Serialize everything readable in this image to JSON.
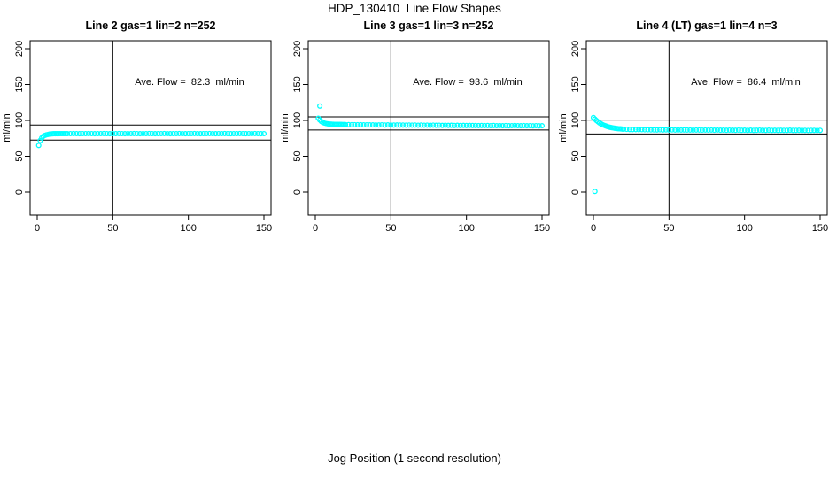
{
  "title": "HDP_130410  Line Flow Shapes",
  "xlabel": "Jog Position (1 second resolution)",
  "colors": {
    "marker": "#00ffff",
    "axis": "#000000",
    "background": "#ffffff"
  },
  "chart_data": [
    {
      "type": "scatter",
      "title": "Line 2 gas=1 lin=2 n=252",
      "annotation": "Ave. Flow =  82.3  ml/min",
      "ave_flow": 82.3,
      "ylabel": "ml/min",
      "xlim": [
        0,
        150
      ],
      "ylim": [
        0,
        200
      ],
      "xticks": [
        0,
        50,
        100,
        150
      ],
      "yticks": [
        0,
        50,
        100,
        150,
        200
      ],
      "vline": 50,
      "hlines": [
        93.5,
        72.5
      ],
      "points": [
        [
          1,
          65
        ],
        [
          2,
          72
        ],
        [
          3,
          75.5
        ],
        [
          4,
          77.8
        ],
        [
          5,
          79
        ],
        [
          6,
          79.8
        ],
        [
          7,
          80.3
        ],
        [
          8,
          80.7
        ],
        [
          9,
          81
        ],
        [
          10,
          81.2
        ],
        [
          11,
          81.3
        ],
        [
          12,
          81.3
        ],
        [
          13,
          81.4
        ],
        [
          14,
          81.4
        ],
        [
          15,
          81.5
        ],
        [
          16,
          81.5
        ],
        [
          17,
          81.5
        ],
        [
          18,
          81.5
        ],
        [
          19,
          81.5
        ],
        [
          20,
          81.5
        ],
        [
          22,
          81.5
        ],
        [
          24,
          81.6
        ],
        [
          26,
          81.5
        ],
        [
          28,
          81.4
        ],
        [
          30,
          81.5
        ],
        [
          32,
          81.5
        ],
        [
          34,
          81.6
        ],
        [
          36,
          81.5
        ],
        [
          38,
          81.4
        ],
        [
          40,
          81.5
        ],
        [
          42,
          81.5
        ],
        [
          44,
          81.6
        ],
        [
          46,
          81.5
        ],
        [
          48,
          81.4
        ],
        [
          50,
          81.5
        ],
        [
          52,
          81.5
        ],
        [
          54,
          81.6
        ],
        [
          56,
          81.5
        ],
        [
          58,
          81.4
        ],
        [
          60,
          81.5
        ],
        [
          62,
          81.5
        ],
        [
          64,
          81.6
        ],
        [
          66,
          81.5
        ],
        [
          68,
          81.4
        ],
        [
          70,
          81.5
        ],
        [
          72,
          81.5
        ],
        [
          74,
          81.6
        ],
        [
          76,
          81.5
        ],
        [
          78,
          81.4
        ],
        [
          80,
          81.5
        ],
        [
          82,
          81.5
        ],
        [
          84,
          81.6
        ],
        [
          86,
          81.5
        ],
        [
          88,
          81.4
        ],
        [
          90,
          81.5
        ],
        [
          92,
          81.5
        ],
        [
          94,
          81.6
        ],
        [
          96,
          81.5
        ],
        [
          98,
          81.4
        ],
        [
          100,
          81.5
        ],
        [
          102,
          81.5
        ],
        [
          104,
          81.6
        ],
        [
          106,
          81.5
        ],
        [
          108,
          81.4
        ],
        [
          110,
          81.5
        ],
        [
          112,
          81.5
        ],
        [
          114,
          81.6
        ],
        [
          116,
          81.5
        ],
        [
          118,
          81.4
        ],
        [
          120,
          81.5
        ],
        [
          122,
          81.5
        ],
        [
          124,
          81.6
        ],
        [
          126,
          81.5
        ],
        [
          128,
          81.4
        ],
        [
          130,
          81.5
        ],
        [
          132,
          81.5
        ],
        [
          134,
          81.6
        ],
        [
          136,
          81.5
        ],
        [
          138,
          81.4
        ],
        [
          140,
          81.5
        ],
        [
          142,
          81.5
        ],
        [
          144,
          81.6
        ],
        [
          146,
          81.5
        ],
        [
          148,
          81.4
        ],
        [
          150,
          81.5
        ]
      ]
    },
    {
      "type": "scatter",
      "title": "Line 3 gas=1 lin=3 n=252",
      "annotation": "Ave. Flow =  93.6  ml/min",
      "ave_flow": 93.6,
      "ylabel": "ml/min",
      "xlim": [
        0,
        150
      ],
      "ylim": [
        0,
        200
      ],
      "xticks": [
        0,
        50,
        100,
        150
      ],
      "yticks": [
        0,
        50,
        100,
        150,
        200
      ],
      "vline": 50,
      "hlines": [
        105,
        86.5
      ],
      "points": [
        [
          3,
          120
        ],
        [
          2,
          103
        ],
        [
          3,
          100.5
        ],
        [
          4,
          98.5
        ],
        [
          5,
          97.2
        ],
        [
          6,
          96.3
        ],
        [
          7,
          95.7
        ],
        [
          8,
          95.3
        ],
        [
          9,
          95
        ],
        [
          10,
          94.8
        ],
        [
          11,
          94.7
        ],
        [
          12,
          94.6
        ],
        [
          13,
          94.5
        ],
        [
          14,
          94.4
        ],
        [
          15,
          94.4
        ],
        [
          16,
          94.3
        ],
        [
          17,
          94.3
        ],
        [
          18,
          94.2
        ],
        [
          19,
          94.2
        ],
        [
          20,
          94.1
        ],
        [
          22,
          94.1
        ],
        [
          24,
          94
        ],
        [
          26,
          94
        ],
        [
          28,
          93.9
        ],
        [
          30,
          93.9
        ],
        [
          32,
          93.8
        ],
        [
          34,
          93.8
        ],
        [
          36,
          93.7
        ],
        [
          38,
          93.7
        ],
        [
          40,
          93.6
        ],
        [
          42,
          93.6
        ],
        [
          44,
          93.8
        ],
        [
          46,
          93.5
        ],
        [
          48,
          93.7
        ],
        [
          50,
          93.5
        ],
        [
          52,
          93.4
        ],
        [
          54,
          93.6
        ],
        [
          56,
          93.4
        ],
        [
          58,
          93.5
        ],
        [
          60,
          93.3
        ],
        [
          62,
          93.5
        ],
        [
          64,
          93.3
        ],
        [
          66,
          93.4
        ],
        [
          68,
          93.2
        ],
        [
          70,
          93.4
        ],
        [
          72,
          93.2
        ],
        [
          74,
          93.3
        ],
        [
          76,
          93.1
        ],
        [
          78,
          93.3
        ],
        [
          80,
          93.1
        ],
        [
          82,
          93.2
        ],
        [
          84,
          93
        ],
        [
          86,
          93.2
        ],
        [
          88,
          93
        ],
        [
          90,
          93.1
        ],
        [
          92,
          92.9
        ],
        [
          94,
          93.1
        ],
        [
          96,
          92.9
        ],
        [
          98,
          93
        ],
        [
          100,
          92.8
        ],
        [
          102,
          93
        ],
        [
          104,
          92.8
        ],
        [
          106,
          92.9
        ],
        [
          108,
          92.7
        ],
        [
          110,
          92.9
        ],
        [
          112,
          92.7
        ],
        [
          114,
          92.8
        ],
        [
          116,
          92.6
        ],
        [
          118,
          92.8
        ],
        [
          120,
          92.6
        ],
        [
          122,
          92.7
        ],
        [
          124,
          92.5
        ],
        [
          126,
          92.7
        ],
        [
          128,
          92.5
        ],
        [
          130,
          92.6
        ],
        [
          132,
          92.8
        ],
        [
          134,
          92.6
        ],
        [
          136,
          92.5
        ],
        [
          138,
          92.7
        ],
        [
          140,
          92.5
        ],
        [
          142,
          92.6
        ],
        [
          144,
          92.4
        ],
        [
          146,
          92.6
        ],
        [
          148,
          92.4
        ],
        [
          150,
          92.5
        ]
      ]
    },
    {
      "type": "scatter",
      "title": "Line 4 (LT) gas=1 lin=4 n=3",
      "annotation": "Ave. Flow =  86.4  ml/min",
      "ave_flow": 86.4,
      "ylabel": "ml/min",
      "xlim": [
        0,
        150
      ],
      "ylim": [
        0,
        200
      ],
      "xticks": [
        0,
        50,
        100,
        150
      ],
      "yticks": [
        0,
        50,
        100,
        150,
        200
      ],
      "vline": 50,
      "hlines": [
        100.5,
        81
      ],
      "points": [
        [
          1,
          1
        ],
        [
          0,
          104
        ],
        [
          1,
          101.8
        ],
        [
          2,
          99.9
        ],
        [
          3,
          98.1
        ],
        [
          4,
          96.6
        ],
        [
          5,
          95.3
        ],
        [
          6,
          94.1
        ],
        [
          7,
          93.2
        ],
        [
          8,
          92.3
        ],
        [
          9,
          91.6
        ],
        [
          10,
          90.9
        ],
        [
          11,
          90.4
        ],
        [
          12,
          89.9
        ],
        [
          13,
          89.5
        ],
        [
          14,
          89.1
        ],
        [
          15,
          88.8
        ],
        [
          16,
          88.5
        ],
        [
          17,
          88.3
        ],
        [
          18,
          88.1
        ],
        [
          19,
          87.9
        ],
        [
          20,
          87.7
        ],
        [
          22,
          87.5
        ],
        [
          24,
          87.3
        ],
        [
          26,
          87.2
        ],
        [
          28,
          87.1
        ],
        [
          30,
          87
        ],
        [
          32,
          87
        ],
        [
          34,
          86.9
        ],
        [
          36,
          86.9
        ],
        [
          38,
          86.8
        ],
        [
          40,
          86.8
        ],
        [
          42,
          86.7
        ],
        [
          44,
          86.9
        ],
        [
          46,
          86.7
        ],
        [
          48,
          86.8
        ],
        [
          50,
          86.6
        ],
        [
          52,
          86.8
        ],
        [
          54,
          86.6
        ],
        [
          56,
          86.7
        ],
        [
          58,
          86.5
        ],
        [
          60,
          86.7
        ],
        [
          62,
          86.5
        ],
        [
          64,
          86.6
        ],
        [
          66,
          86.4
        ],
        [
          68,
          86.6
        ],
        [
          70,
          86.5
        ],
        [
          72,
          86.4
        ],
        [
          74,
          86.6
        ],
        [
          76,
          86.4
        ],
        [
          78,
          86.5
        ],
        [
          80,
          86.3
        ],
        [
          82,
          86.5
        ],
        [
          84,
          86.3
        ],
        [
          86,
          86.4
        ],
        [
          88,
          86.2
        ],
        [
          90,
          86.4
        ],
        [
          92,
          86.3
        ],
        [
          94,
          86.2
        ],
        [
          96,
          86.4
        ],
        [
          98,
          86.2
        ],
        [
          100,
          86.3
        ],
        [
          102,
          86.1
        ],
        [
          104,
          86.3
        ],
        [
          106,
          86.1
        ],
        [
          108,
          86.2
        ],
        [
          110,
          86.4
        ],
        [
          112,
          86.2
        ],
        [
          114,
          86.1
        ],
        [
          116,
          86.3
        ],
        [
          118,
          86.1
        ],
        [
          120,
          86.2
        ],
        [
          122,
          86
        ],
        [
          124,
          86.2
        ],
        [
          126,
          86
        ],
        [
          128,
          86.1
        ],
        [
          130,
          86.3
        ],
        [
          132,
          86.1
        ],
        [
          134,
          86
        ],
        [
          136,
          86.2
        ],
        [
          138,
          86
        ],
        [
          140,
          86.1
        ],
        [
          142,
          85.9
        ],
        [
          144,
          86.1
        ],
        [
          146,
          86
        ],
        [
          148,
          85.9
        ],
        [
          150,
          86
        ]
      ]
    }
  ]
}
